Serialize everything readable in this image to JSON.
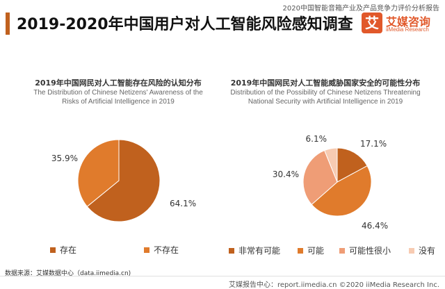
{
  "header": {
    "top_note": "2020中国智能音箱产业及产品竞争力评价分析报告",
    "title": "2019-2020年中国用户对人工智能风险感知调查"
  },
  "logo": {
    "mark": "艾",
    "name": "艾媒咨询",
    "sub": "iiMedia Research"
  },
  "source": "数据来源：艾媒数据中心（data.iimedia.cn)",
  "footer": "艾媒报告中心：report.iimedia.cn ©2020 iiMedia Research Inc.",
  "colors": {
    "orange_dark": "#c0611e",
    "orange": "#e07b2c",
    "salmon": "#ef9d76",
    "peach": "#f7cbb2"
  },
  "chart_data": [
    {
      "type": "pie",
      "title": "2019年中国网民对人工智能存在风险的认知分布",
      "subtitle": "The Distribution of Chinese Netizens' Awareness of the Risks of Artificial Intelligence in 2019",
      "subtitle_lines": [
        "The Distribution of Chinese Netizens' Awareness of the",
        "Risks of Artificial Intelligence in 2019"
      ],
      "slices": [
        {
          "label": "存在",
          "value": 64.1,
          "display": "64.1%",
          "color": "#c0611e"
        },
        {
          "label": "不存在",
          "value": 35.9,
          "display": "35.9%",
          "color": "#e07b2c"
        }
      ],
      "legend_position": "bottom"
    },
    {
      "type": "pie",
      "title": "2019年中国网民对人工智能威胁国家安全的可能性分布",
      "subtitle": "Distribution of the Possibility of Chinese Netizens Threatening National Security with Artificial Intelligence in 2019",
      "subtitle_lines": [
        "Distribution of the Possibility of Chinese Netizens Threatening",
        "National Security with Artificial Intelligence in 2019"
      ],
      "slices": [
        {
          "label": "非常有可能",
          "value": 17.1,
          "display": "17.1%",
          "color": "#c0611e"
        },
        {
          "label": "可能",
          "value": 46.4,
          "display": "46.4%",
          "color": "#e07b2c"
        },
        {
          "label": "可能性很小",
          "value": 30.4,
          "display": "30.4%",
          "color": "#ef9d76"
        },
        {
          "label": "没有",
          "value": 6.1,
          "display": "6.1%",
          "color": "#f7cbb2"
        }
      ],
      "legend_position": "bottom"
    }
  ]
}
